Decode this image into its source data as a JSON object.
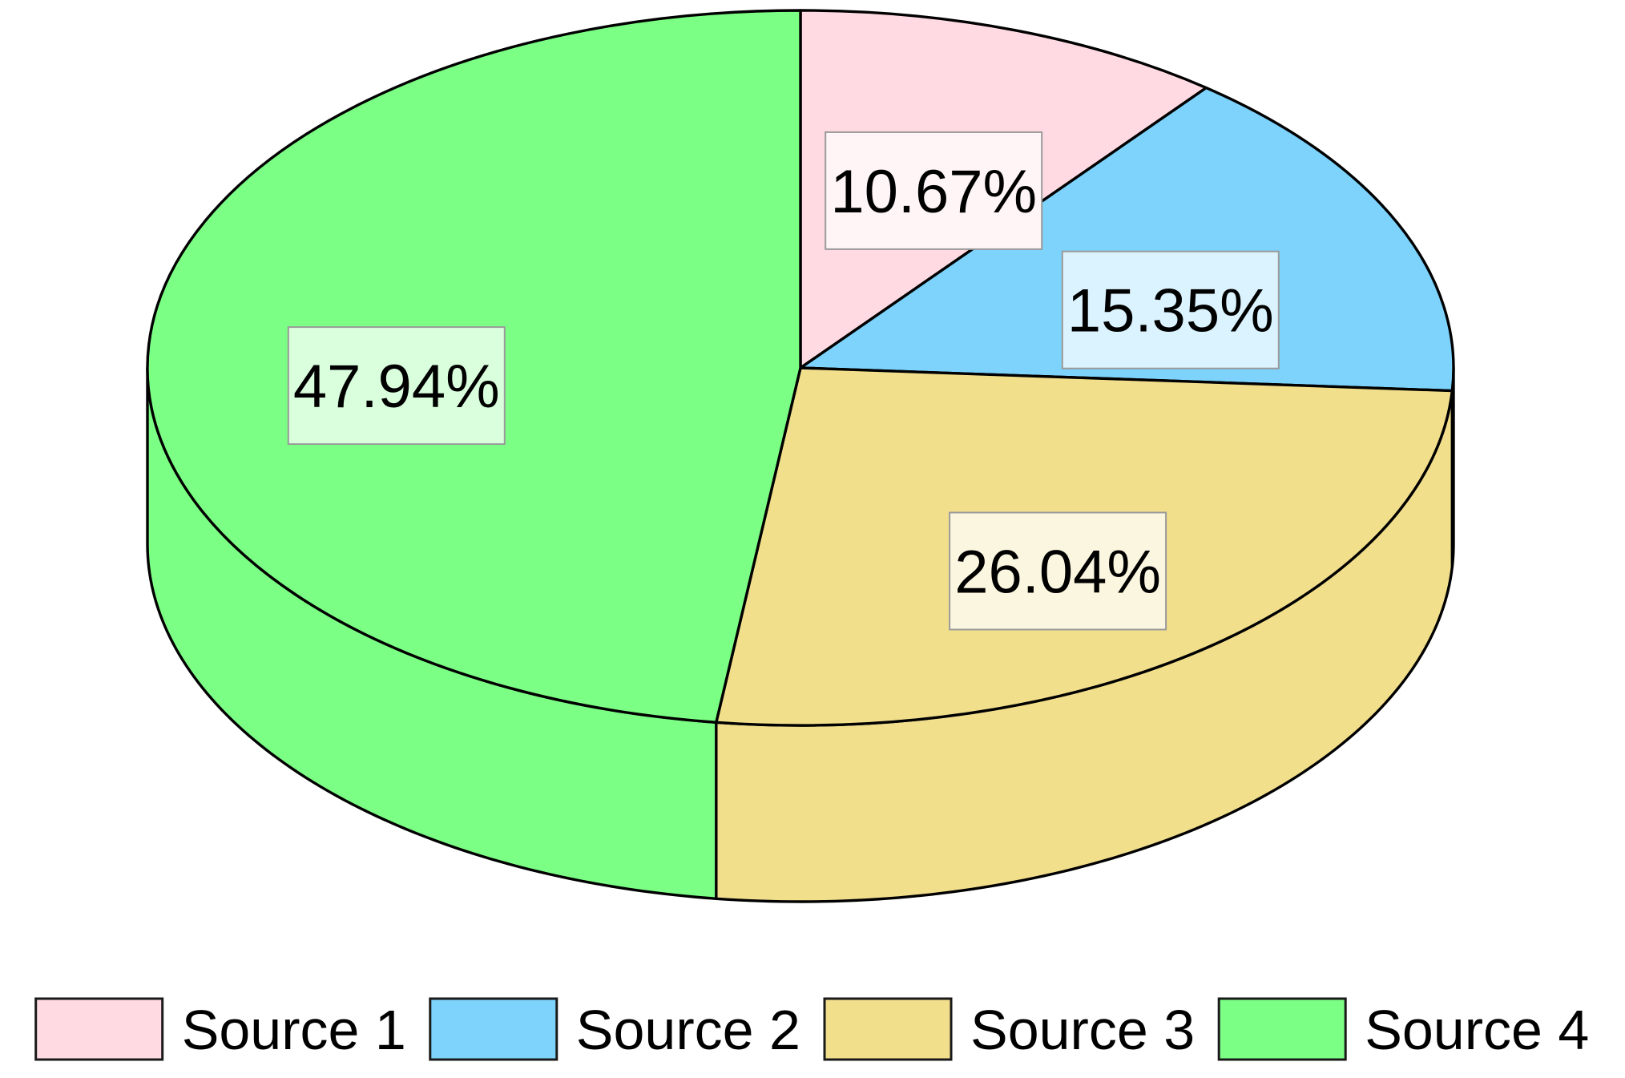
{
  "chart_data": {
    "type": "pie",
    "style": "3d",
    "start_angle_deg": 90,
    "direction": "clockwise",
    "slices": [
      {
        "name": "Source 1",
        "value": 10.67,
        "label": "10.67%",
        "color": "#FFDAE2"
      },
      {
        "name": "Source 2",
        "value": 15.35,
        "label": "15.35%",
        "color": "#7DD3FC"
      },
      {
        "name": "Source 3",
        "value": 26.04,
        "label": "26.04%",
        "color": "#F2DF8C"
      },
      {
        "name": "Source 4",
        "value": 47.94,
        "label": "47.94%",
        "color": "#7CFF85"
      }
    ],
    "legend": {
      "position": "bottom",
      "orientation": "horizontal"
    }
  }
}
